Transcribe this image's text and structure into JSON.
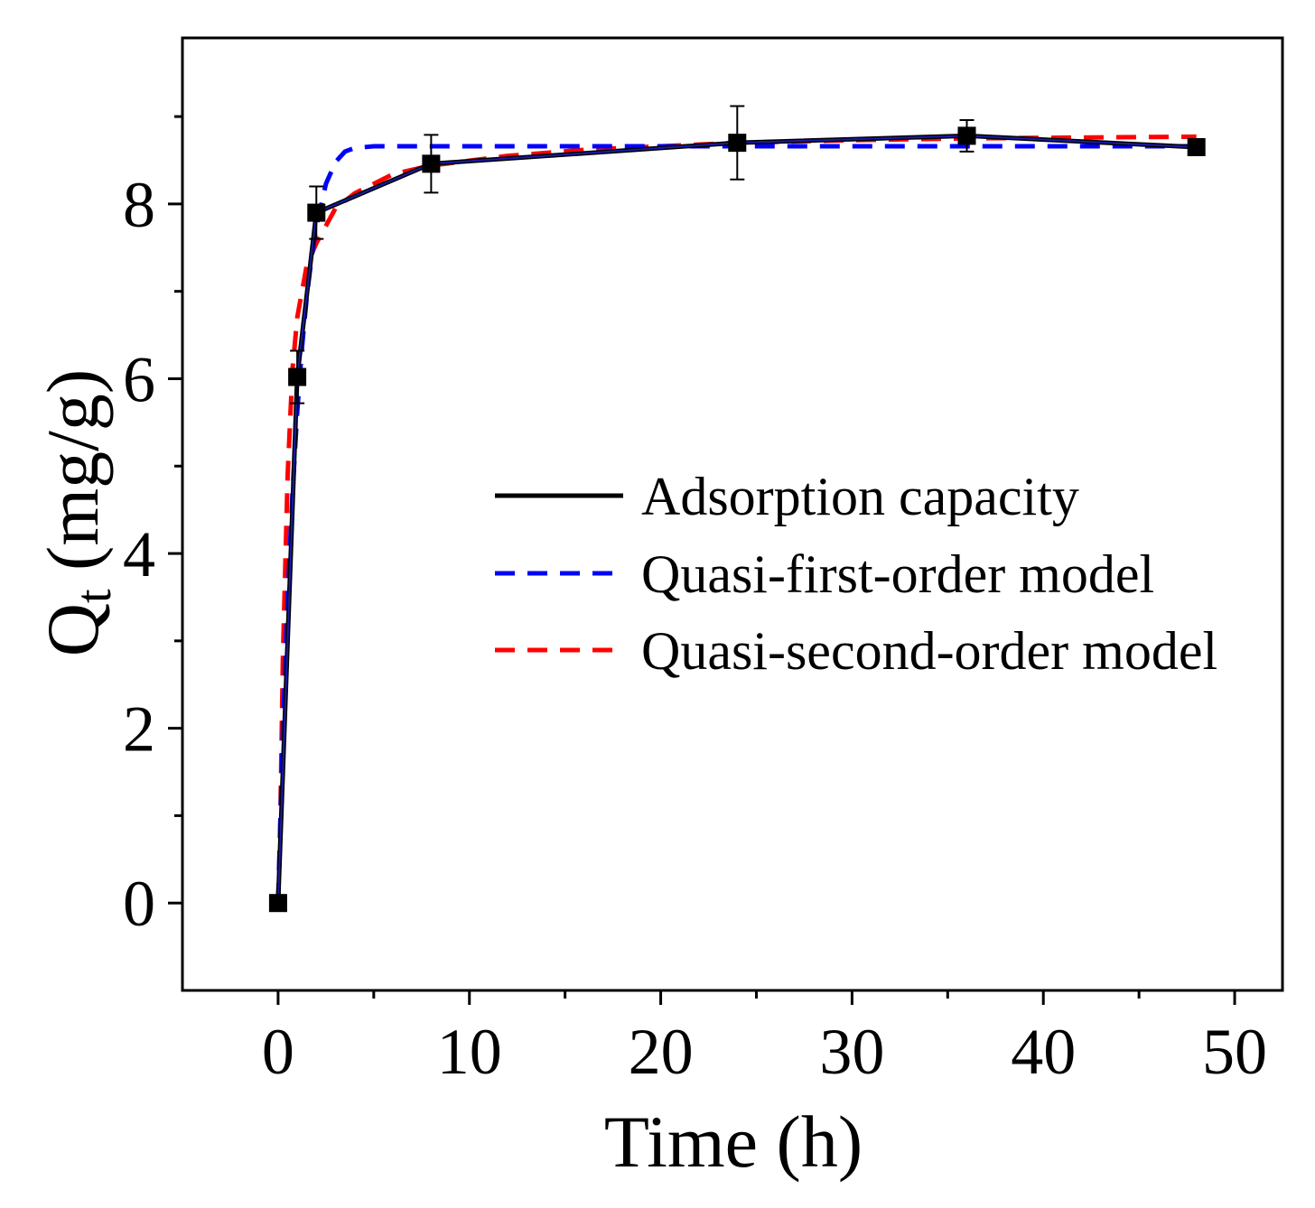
{
  "chart_data": {
    "type": "line",
    "title": "",
    "xlabel": "Time (h)",
    "ylabel_main": "Q",
    "ylabel_sub": "t",
    "ylabel_units": " (mg/g)",
    "xlim": [
      -5,
      52.5
    ],
    "ylim": [
      -1,
      9.9
    ],
    "x_ticks": [
      0,
      10,
      20,
      30,
      40,
      50
    ],
    "x_tick_labels": [
      "0",
      "10",
      "20",
      "30",
      "40",
      "50"
    ],
    "x_minor_ticks": [
      5,
      15,
      25,
      35,
      45
    ],
    "y_ticks": [
      0,
      2,
      4,
      6,
      8
    ],
    "y_tick_labels": [
      "0",
      "2",
      "4",
      "6",
      "8"
    ],
    "y_minor_ticks": [
      1,
      3,
      5,
      7,
      9
    ],
    "grid": false,
    "legend_position": "center-right",
    "measured": {
      "x": [
        0,
        1,
        2,
        8,
        24,
        36,
        48
      ],
      "y": [
        0,
        6.02,
        7.9,
        8.46,
        8.7,
        8.78,
        8.65
      ],
      "err": [
        0,
        0.3,
        0.3,
        0.33,
        0.42,
        0.18,
        0
      ]
    },
    "series": [
      {
        "name": "Adsorption capacity",
        "style": "solid",
        "color": "#000000",
        "x": [
          0,
          1,
          2,
          8,
          24,
          36,
          48
        ],
        "y": [
          0,
          6.02,
          7.9,
          8.46,
          8.7,
          8.78,
          8.65
        ]
      },
      {
        "name": "Quasi-first-order model",
        "style": "dashed",
        "color": "#0000ff",
        "x": [
          0,
          0.25,
          0.5,
          0.75,
          1,
          1.25,
          1.5,
          1.75,
          2,
          2.5,
          3,
          3.5,
          4,
          5,
          6,
          8,
          10,
          15,
          20,
          30,
          40,
          48
        ],
        "y": [
          0,
          1.95,
          3.48,
          4.68,
          5.62,
          6.36,
          6.94,
          7.39,
          7.74,
          8.23,
          8.48,
          8.6,
          8.64,
          8.66,
          8.66,
          8.66,
          8.66,
          8.66,
          8.66,
          8.66,
          8.66,
          8.66
        ]
      },
      {
        "name": "Quasi-second-order model",
        "style": "dashed",
        "color": "#ff0000",
        "x": [
          0,
          0.1,
          0.25,
          0.5,
          0.75,
          1,
          1.5,
          2,
          3,
          4,
          6,
          8,
          12,
          16,
          20,
          24,
          30,
          36,
          42,
          48
        ],
        "y": [
          0,
          0.7,
          2.8,
          4.9,
          6.1,
          6.7,
          7.3,
          7.55,
          7.95,
          8.12,
          8.34,
          8.44,
          8.55,
          8.62,
          8.66,
          8.7,
          8.73,
          8.75,
          8.76,
          8.77
        ]
      }
    ]
  }
}
